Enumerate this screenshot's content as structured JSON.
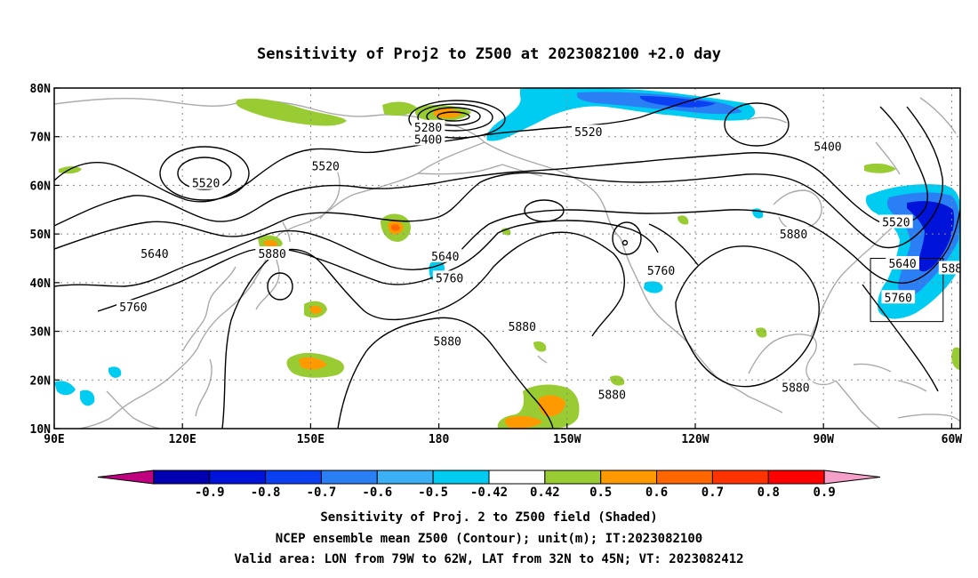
{
  "title": "Sensitivity of Proj2 to Z500 at 2023082100 +2.0 day",
  "map": {
    "lon_ticks": [
      "90E",
      "120E",
      "150E",
      "180",
      "150W",
      "120W",
      "90W",
      "60W"
    ],
    "lat_ticks": [
      "80N",
      "70N",
      "60N",
      "50N",
      "40N",
      "30N",
      "20N",
      "10N"
    ],
    "lon_range": [
      90,
      302
    ],
    "lat_range": [
      10,
      80
    ],
    "grid": "dotted",
    "contour_color": "#000000",
    "coast_color": "#aaaaaa"
  },
  "contour_labels": [
    {
      "text": "5280",
      "lon": 177.5,
      "lat": 72.0
    },
    {
      "text": "5400",
      "lon": 177.5,
      "lat": 69.5
    },
    {
      "text": "5520",
      "lon": 215.0,
      "lat": 71.0
    },
    {
      "text": "5400",
      "lon": 271.0,
      "lat": 68.0
    },
    {
      "text": "5520",
      "lon": 153.5,
      "lat": 64.0
    },
    {
      "text": "5520",
      "lon": 125.5,
      "lat": 60.5
    },
    {
      "text": "5640",
      "lon": 113.5,
      "lat": 46.0
    },
    {
      "text": "5880",
      "lon": 141.0,
      "lat": 46.0
    },
    {
      "text": "5640",
      "lon": 181.5,
      "lat": 45.5
    },
    {
      "text": "5760",
      "lon": 182.5,
      "lat": 41.0
    },
    {
      "text": "5760",
      "lon": 108.5,
      "lat": 35.0
    },
    {
      "text": "5880",
      "lon": 182.0,
      "lat": 28.0
    },
    {
      "text": "5880",
      "lon": 199.5,
      "lat": 31.0
    },
    {
      "text": "5880",
      "lon": 220.5,
      "lat": 17.0
    },
    {
      "text": "5760",
      "lon": 232.0,
      "lat": 42.5
    },
    {
      "text": "5880",
      "lon": 263.0,
      "lat": 50.0
    },
    {
      "text": "5880",
      "lon": 263.5,
      "lat": 18.5
    },
    {
      "text": "5520",
      "lon": 287.0,
      "lat": 52.5
    },
    {
      "text": "5640",
      "lon": 288.5,
      "lat": 44.0
    },
    {
      "text": "5760",
      "lon": 287.5,
      "lat": 37.0
    },
    {
      "text": "588",
      "lon": 300.0,
      "lat": 43.0
    }
  ],
  "valid_area": {
    "lon_min": -79,
    "lon_max": -62,
    "lat_min": 32,
    "lat_max": 45
  },
  "colorbar": {
    "colors": [
      "#bf007f",
      "#0000b2",
      "#0014d9",
      "#0a3ff2",
      "#2a7ff5",
      "#3bb0f5",
      "#00ccf2",
      "#ffffff",
      "#99cc33",
      "#ff9900",
      "#ff6600",
      "#ff3300",
      "#ff0000",
      "#f4a0c8"
    ],
    "labels": [
      "-0.9",
      "-0.8",
      "-0.7",
      "-0.6",
      "-0.5",
      "-0.42",
      "0.42",
      "0.5",
      "0.6",
      "0.7",
      "0.8",
      "0.9"
    ]
  },
  "captions": {
    "line1": "Sensitivity of Proj. 2 to Z500 field (Shaded)",
    "line2": "NCEP ensemble mean Z500 (Contour); unit(m); IT:2023082100",
    "line3": "Valid area: LON from 79W to 62W, LAT from 32N to 45N; VT: 2023082412"
  }
}
